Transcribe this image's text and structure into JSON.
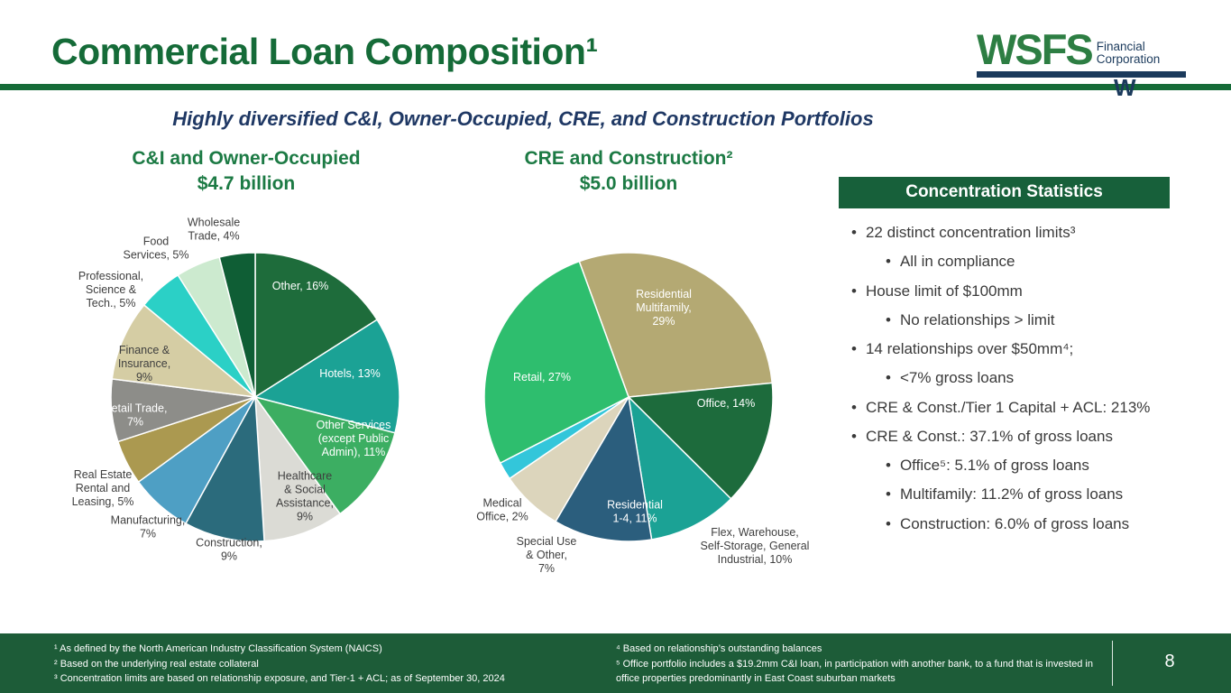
{
  "slide": {
    "title": "Commercial Loan Composition¹",
    "subtitle": "Highly diversified C&I, Owner-Occupied, CRE, and Construction Portfolios",
    "page_number": "8"
  },
  "logo": {
    "wordmark": "WSFS",
    "line1": "Financial",
    "line2": "Corporation",
    "mark": "W"
  },
  "colors": {
    "brand_green": "#156B38",
    "chart_title_green": "#1C7A44",
    "logo_green": "#2D7E43",
    "navy": "#1B3A5C",
    "subtitle_navy": "#1F3864",
    "stats_header_green": "#17603A",
    "footer_green": "#1D5C38",
    "text_dark": "#3A3A3A"
  },
  "chart_data": [
    {
      "type": "pie",
      "title": "C&I and Owner-Occupied",
      "total": "$4.7 billion",
      "start_angle": 0,
      "legend_position": "none",
      "slices": [
        {
          "label": "Other",
          "pct": 16,
          "color": "#1E6C3B",
          "label_color": "#FFFFFF",
          "inside": true,
          "label_lines": [
            "Other, 16%"
          ]
        },
        {
          "label": "Hotels",
          "pct": 13,
          "color": "#1BA295",
          "label_color": "#FFFFFF",
          "inside": true,
          "label_lines": [
            "Hotels, 13%"
          ]
        },
        {
          "label": "Other Services (except Public Admin)",
          "pct": 11,
          "color": "#3CAE62",
          "label_color": "#FFFFFF",
          "inside": true,
          "label_lines": [
            "Other Services",
            "(except Public",
            "Admin), 11%"
          ]
        },
        {
          "label": "Healthcare & Social Assistance",
          "pct": 9,
          "color": "#DBDBD5",
          "label_color": "#3F3F3F",
          "inside": true,
          "label_lines": [
            "Healthcare",
            "& Social",
            "Assistance,",
            "9%"
          ]
        },
        {
          "label": "Construction",
          "pct": 9,
          "color": "#2B6B7C",
          "label_color": "#3F3F3F",
          "inside": false,
          "label_lines": [
            "Construction,",
            "9%"
          ]
        },
        {
          "label": "Manufacturing",
          "pct": 7,
          "color": "#4E9FC4",
          "label_color": "#3F3F3F",
          "inside": false,
          "label_lines": [
            "Manufacturing,",
            "7%"
          ]
        },
        {
          "label": "Real Estate Rental and Leasing",
          "pct": 5,
          "color": "#AB9950",
          "label_color": "#3F3F3F",
          "inside": false,
          "label_lines": [
            "Real Estate",
            "Rental and",
            "Leasing, 5%"
          ]
        },
        {
          "label": "Retail Trade",
          "pct": 7,
          "color": "#8D8D89",
          "label_color": "#FFFFFF",
          "inside": true,
          "label_lines": [
            "Retail Trade,",
            "7%"
          ]
        },
        {
          "label": "Finance & Insurance",
          "pct": 9,
          "color": "#D5CDA4",
          "label_color": "#3F3F3F",
          "inside": true,
          "label_lines": [
            "Finance &",
            "Insurance,",
            "9%"
          ]
        },
        {
          "label": "Professional, Science & Tech.",
          "pct": 5,
          "color": "#2BD0C6",
          "label_color": "#3F3F3F",
          "inside": false,
          "label_lines": [
            "Professional,",
            "Science &",
            "Tech., 5%"
          ]
        },
        {
          "label": "Food Services",
          "pct": 5,
          "color": "#CCEACF",
          "label_color": "#3F3F3F",
          "inside": false,
          "label_lines": [
            "Food",
            "Services, 5%"
          ]
        },
        {
          "label": "Wholesale Trade",
          "pct": 4,
          "color": "#0F5E35",
          "label_color": "#3F3F3F",
          "inside": false,
          "label_lines": [
            "Wholesale",
            "Trade, 4%"
          ]
        }
      ]
    },
    {
      "type": "pie",
      "title": "CRE and Construction²",
      "total": "$5.0 billion",
      "start_angle": -20,
      "legend_position": "none",
      "slices": [
        {
          "label": "Residential Multifamily",
          "pct": 29,
          "color": "#B4A973",
          "label_color": "#FFFFFF",
          "inside": true,
          "label_lines": [
            "Residential",
            "Multifamily,",
            "29%"
          ]
        },
        {
          "label": "Office",
          "pct": 14,
          "color": "#1D6B3C",
          "label_color": "#FFFFFF",
          "inside": true,
          "label_lines": [
            "Office, 14%"
          ]
        },
        {
          "label": "Flex, Warehouse, Self-Storage, General Industrial",
          "pct": 10,
          "color": "#1BA295",
          "label_color": "#3F3F3F",
          "inside": false,
          "label_lines": [
            "Flex, Warehouse,",
            "Self-Storage, General",
            "Industrial, 10%"
          ]
        },
        {
          "label": "Residential 1-4",
          "pct": 11,
          "color": "#2B5E7D",
          "label_color": "#FFFFFF",
          "inside": true,
          "label_lines": [
            "Residential",
            "1-4, 11%"
          ]
        },
        {
          "label": "Special Use & Other",
          "pct": 7,
          "color": "#DCD5BC",
          "label_color": "#3F3F3F",
          "inside": false,
          "label_lines": [
            "Special Use",
            "& Other,",
            "7%"
          ]
        },
        {
          "label": "Medical Office",
          "pct": 2,
          "color": "#33C6DA",
          "label_color": "#3F3F3F",
          "inside": false,
          "label_lines": [
            "Medical",
            "Office, 2%"
          ]
        },
        {
          "label": "Retail",
          "pct": 27,
          "color": "#2EBE6E",
          "label_color": "#FFFFFF",
          "inside": true,
          "label_lines": [
            "Retail, 27%"
          ]
        }
      ]
    }
  ],
  "stats_panel": {
    "header": "Concentration Statistics",
    "items": [
      {
        "level": 1,
        "text": "22 distinct concentration limits³"
      },
      {
        "level": 2,
        "text": "All in compliance"
      },
      {
        "level": 1,
        "text": "House limit of $100mm"
      },
      {
        "level": 2,
        "text": "No relationships > limit"
      },
      {
        "level": 1,
        "text": "14 relationships over $50mm⁴;"
      },
      {
        "level": 2,
        "text": "<7% gross loans"
      },
      {
        "level": 1,
        "text": "CRE & Const./Tier 1 Capital + ACL: 213%"
      },
      {
        "level": 1,
        "text": "CRE & Const.: 37.1% of gross loans"
      },
      {
        "level": 2,
        "text": "Office⁵: 5.1% of gross loans"
      },
      {
        "level": 2,
        "text": "Multifamily: 11.2% of gross loans"
      },
      {
        "level": 2,
        "text": "Construction: 6.0% of gross loans"
      }
    ]
  },
  "footnotes": {
    "left": [
      "¹ As defined by the North American Industry Classification System (NAICS)",
      "² Based on the underlying real estate collateral",
      "³ Concentration limits are based on relationship exposure, and Tier-1 + ACL; as of September 30, 2024"
    ],
    "right": [
      "⁴ Based on relationship’s outstanding balances",
      "⁵ Office portfolio includes a $19.2mm C&I loan, in participation with another bank, to a fund that is invested in office properties predominantly in East Coast suburban markets"
    ]
  }
}
